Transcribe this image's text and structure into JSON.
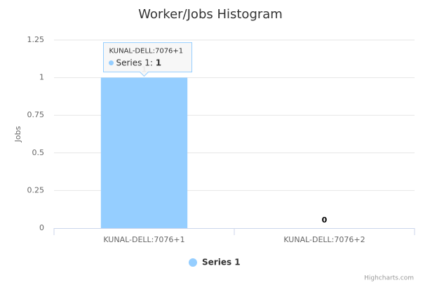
{
  "chart_data": {
    "type": "bar",
    "title": "Worker/Jobs Histogram",
    "y_label": "Jobs",
    "categories": [
      "KUNAL-DELL:7076+1",
      "KUNAL-DELL:7076+2"
    ],
    "series": [
      {
        "name": "Series 1",
        "color": "#95ceff",
        "values": [
          1,
          0
        ]
      }
    ],
    "ylim": [
      0,
      1.25
    ],
    "yticks": [
      0,
      0.25,
      0.5,
      0.75,
      1,
      1.25
    ],
    "grid": true,
    "tooltip": {
      "title": "KUNAL-DELL:7076+1",
      "series": "Series 1",
      "value": 1
    },
    "credits": "Highcharts.com"
  }
}
